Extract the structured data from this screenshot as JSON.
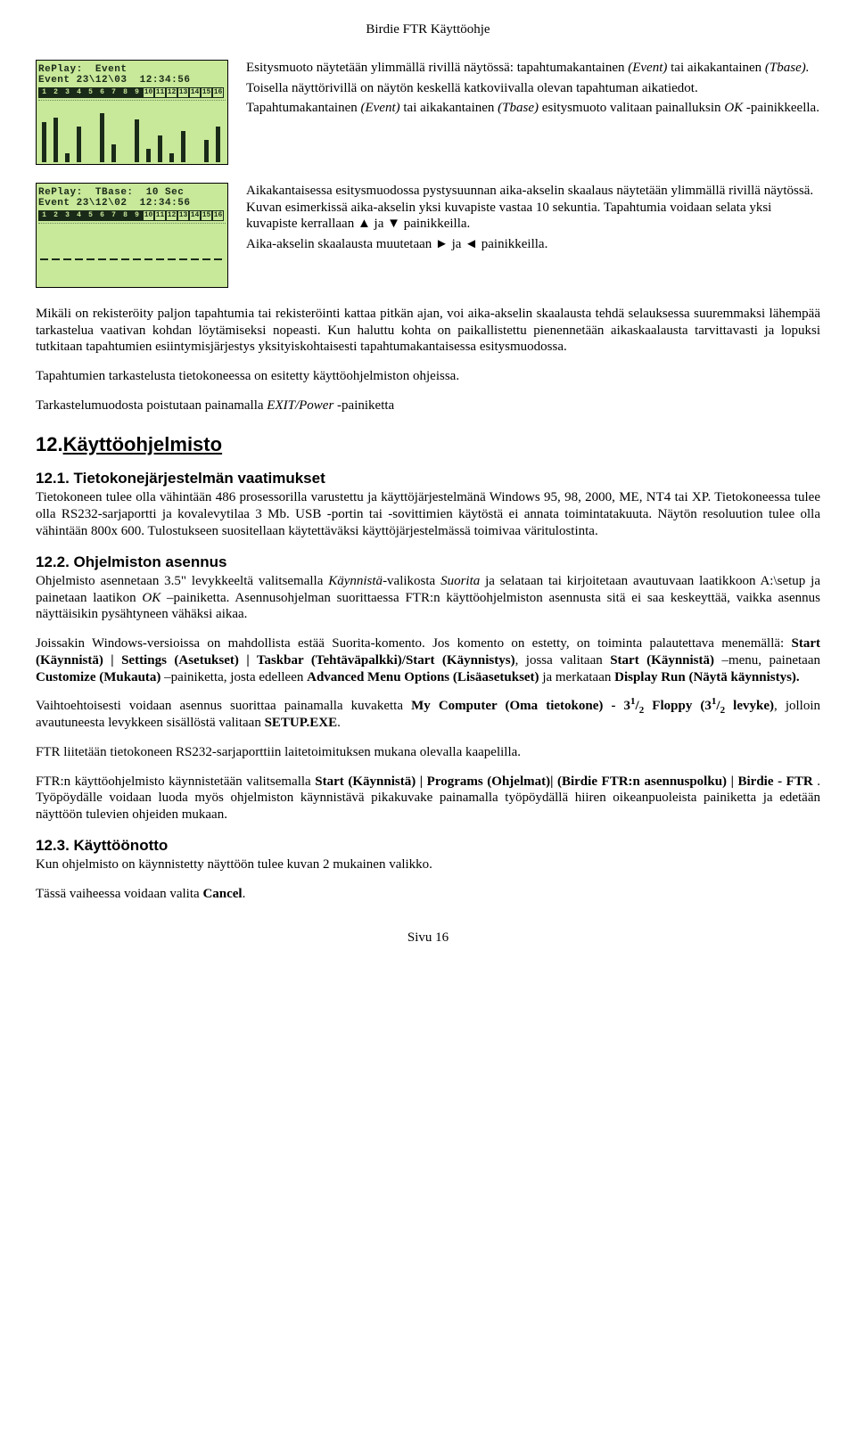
{
  "header": "Birdie FTR Käyttöohje",
  "lcd1": {
    "line1": "RePlay:  Event",
    "line2": "Event 23\\12\\03  12:34:56",
    "numrow_dark": [
      1,
      2,
      3,
      4,
      5,
      6,
      7,
      8,
      9
    ],
    "numrow_light": [
      10,
      11,
      12,
      13,
      14,
      15,
      16
    ],
    "bars": [
      45,
      50,
      10,
      40,
      0,
      55,
      20,
      0,
      48,
      15,
      30,
      10,
      35,
      0,
      25,
      40
    ]
  },
  "lcd2": {
    "line1": "RePlay:  TBase:  10 Sec",
    "line2": "Event 23\\12\\02  12:34:56",
    "numrow_dark": [
      1,
      2,
      3,
      4,
      5,
      6,
      7,
      8,
      9
    ],
    "numrow_light": [
      10,
      11,
      12,
      13,
      14,
      15,
      16
    ],
    "bars": [
      0,
      0,
      0,
      0,
      0,
      0,
      0,
      0,
      0,
      0,
      0,
      0,
      0,
      0,
      0,
      0
    ]
  },
  "para1a": "Esitysmuoto näytetään ylimmällä rivillä näytössä: tapahtumakantainen ",
  "para1b": "(Event)",
  "para1c": " tai aikakantainen ",
  "para1d": "(Tbase).",
  "para2": "Toisella näyttörivillä on näytön keskellä katkoviivalla olevan tapahtuman aikatiedot.",
  "para3a": "Tapahtumakantainen ",
  "para3b": "(Event)",
  "para3c": " tai aikakantainen ",
  "para3d": "(Tbase)",
  "para3e": " esitysmuoto valitaan painalluksin ",
  "para3f": "OK",
  "para3g": " -painikkeella.",
  "block2_p1": "Aikakantaisessa esitysmuodossa pystysuunnan aika-akselin skaalaus näytetään ylimmällä rivillä näytössä. Kuvan esimerkissä aika-akselin yksi kuvapiste vastaa 10 sekuntia. Tapahtumia voidaan selata yksi kuvapiste kerrallaan ▲ ja ▼ painikkeilla.",
  "block2_p2": "Aika-akselin skaalausta muutetaan  ►  ja  ◄  painikkeilla.",
  "body1": "Mikäli on rekisteröity paljon tapahtumia tai rekisteröinti kattaa pitkän ajan, voi aika-akselin skaalausta tehdä selauksessa suuremmaksi lähempää tarkastelua vaativan kohdan löytämiseksi nopeasti. Kun haluttu kohta on paikallistettu pienennetään aikaskaalausta tarvittavasti ja lopuksi tutkitaan tapahtumien esiintymisjärjestys yksityiskohtaisesti tapahtumakantaisessa esitysmuodossa.",
  "body2": "Tapahtumien tarkastelusta tietokoneessa on esitetty käyttöohjelmiston ohjeissa.",
  "body3a": "Tarkastelumuodosta poistutaan painamalla ",
  "body3b": "EXIT/Power",
  "body3c": " -painiketta",
  "h2_num": "12. ",
  "h2_text": "Käyttöohjelmisto",
  "s121_title": "12.1.  Tietokonejärjestelmän vaatimukset",
  "s121_body": "Tietokoneen tulee olla vähintään 486 prosessorilla varustettu ja käyttöjärjestelmänä Windows 95, 98, 2000, ME, NT4 tai XP. Tietokoneessa tulee olla RS232-sarjaportti ja kovalevytilaa 3 Mb. USB -portin tai -sovittimien käytöstä ei annata toimintatakuuta. Näytön resoluution tulee olla vähintään 800x 600. Tulostukseen suositellaan käytettäväksi käyttöjärjestelmässä toimivaa väritulostinta.",
  "s122_title": "12.2.  Ohjelmiston asennus",
  "s122_p1a": "Ohjelmisto asennetaan 3.5\" levykkeeltä valitsemalla ",
  "s122_p1b": "Käynnistä",
  "s122_p1c": "-valikosta ",
  "s122_p1d": "Suorita",
  "s122_p1e": " ja selataan tai kirjoitetaan avautuvaan laatikkoon A:\\setup ja painetaan laatikon ",
  "s122_p1f": "OK",
  "s122_p1g": " –painiketta. Asennusohjelman suorittaessa FTR:n käyttöohjelmiston asennusta sitä ei saa keskeyttää, vaikka asennus näyttäisikin pysähtyneen vähäksi aikaa.",
  "s122_p2a": "Joissakin Windows-versioissa on mahdollista estää Suorita-komento. Jos komento on estetty, on toiminta palautettava menemällä: ",
  "s122_p2b": "Start (Käynnistä) | Settings (Asetukset) | Taskbar  (Tehtäväpalkki)/Start (Käynnistys)",
  "s122_p2c": ", jossa valitaan ",
  "s122_p2d": "Start (Käynnistä)",
  "s122_p2e": " –menu, painetaan ",
  "s122_p2f": "Customize (Mukauta)",
  "s122_p2g": " –painiketta, josta edelleen  ",
  "s122_p2h": "Advanced Menu Options (Lisäasetukset)",
  "s122_p2i": " ja merkataan ",
  "s122_p2j": "Display Run (Näytä käynnistys).",
  "s122_p3a": "Vaihtoehtoisesti voidaan asennus suorittaa painamalla kuvaketta ",
  "s122_p3b": "My Computer",
  "s122_p3c": " (",
  "s122_p3d": "Oma tietokone) - 3",
  "s122_p3e": "/",
  "s122_p3f": " Floppy",
  "s122_p3g": " (",
  "s122_p3h": "3",
  "s122_p3i": "/",
  "s122_p3k": " levyke)",
  "s122_p3l": ", jolloin avautuneesta levykkeen sisällöstä valitaan ",
  "s122_p3m": "SETUP.EXE",
  "s122_p3n": ".",
  "s122_p4": "FTR liitetään tietokoneen RS232-sarjaporttiin laitetoimituksen mukana olevalla kaapelilla.",
  "s122_p5a": "FTR:n käyttöohjelmisto käynnistetään valitsemalla ",
  "s122_p5b": "Start (Käynnistä) | Programs (Ohjelmat)| (Birdie FTR:n asennuspolku) | Birdie - FTR",
  "s122_p5c": " .  Työpöydälle voidaan luoda myös ohjelmiston käynnistävä pikakuvake painamalla työpöydällä hiiren oikeanpuoleista painiketta ja edetään näyttöön tulevien ohjeiden mukaan.",
  "s123_title": "12.3.  Käyttöönotto",
  "s123_p1": "Kun ohjelmisto on käynnistetty näyttöön tulee kuvan 2 mukainen valikko.",
  "s123_p2a": "Tässä vaiheessa voidaan valita ",
  "s123_p2b": "Cancel",
  "s123_p2c": ".",
  "footer_label": "Sivu ",
  "footer_page": "16"
}
